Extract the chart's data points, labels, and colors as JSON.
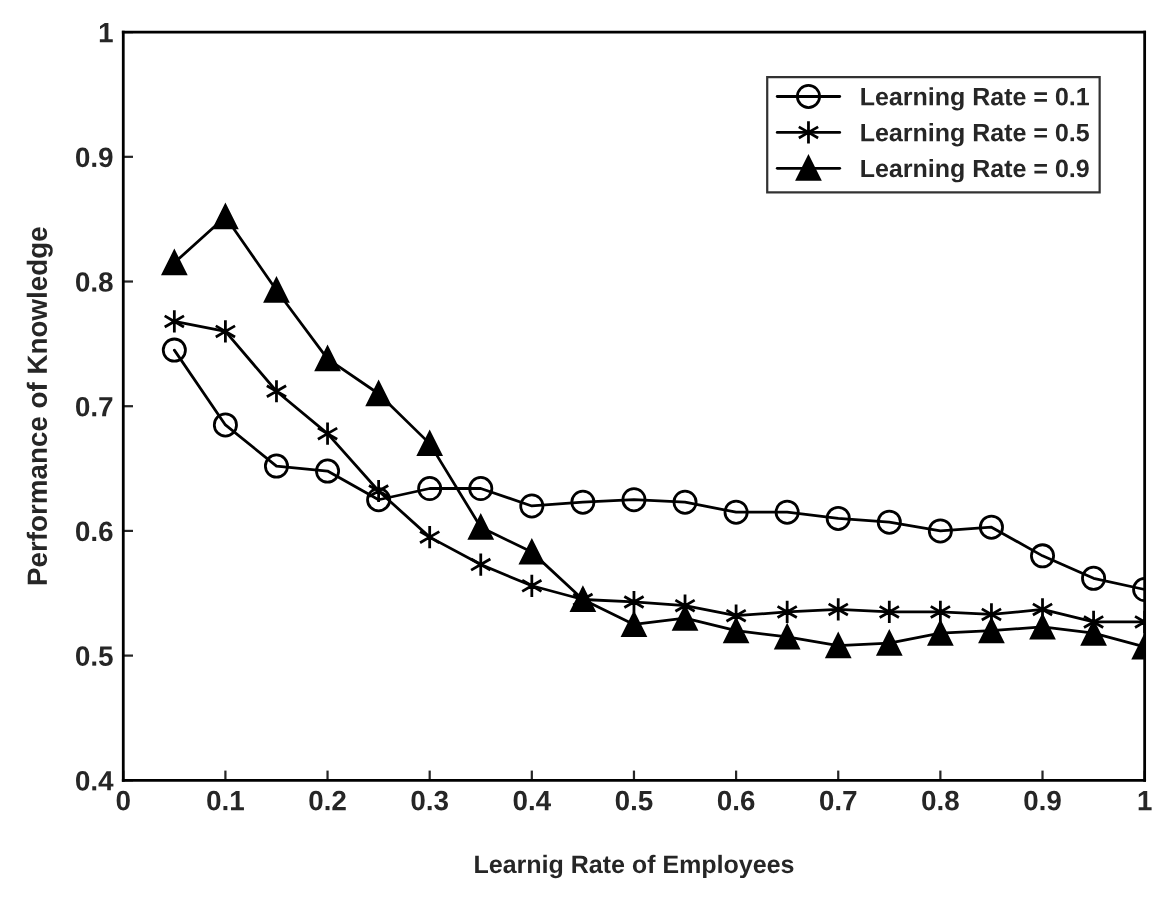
{
  "chart_data": {
    "type": "line",
    "xlabel": "Learnig Rate of Employees",
    "ylabel": "Performance of Knowledge",
    "x": [
      0.05,
      0.1,
      0.15,
      0.2,
      0.25,
      0.3,
      0.35,
      0.4,
      0.45,
      0.5,
      0.55,
      0.6,
      0.65,
      0.7,
      0.75,
      0.8,
      0.85,
      0.9,
      0.95,
      1
    ],
    "series": [
      {
        "name": "Learning Rate = 0.1",
        "color": "#000000",
        "marker": "circle",
        "values": [
          0.745,
          0.685,
          0.652,
          0.648,
          0.625,
          0.634,
          0.634,
          0.62,
          0.623,
          0.625,
          0.623,
          0.615,
          0.615,
          0.61,
          0.607,
          0.6,
          0.603,
          0.58,
          0.562,
          0.553
        ]
      },
      {
        "name": "Learning Rate = 0.5",
        "color": "#000000",
        "marker": "cross",
        "values": [
          0.768,
          0.76,
          0.712,
          0.678,
          0.632,
          0.595,
          0.573,
          0.556,
          0.545,
          0.543,
          0.54,
          0.532,
          0.535,
          0.537,
          0.535,
          0.535,
          0.533,
          0.537,
          0.527,
          0.527
        ]
      },
      {
        "name": "Learning Rate = 0.9",
        "color": "#000000",
        "marker": "triangle",
        "values": [
          0.815,
          0.852,
          0.793,
          0.738,
          0.71,
          0.67,
          0.603,
          0.583,
          0.545,
          0.525,
          0.53,
          0.52,
          0.515,
          0.508,
          0.51,
          0.518,
          0.52,
          0.523,
          0.518,
          0.507
        ]
      }
    ],
    "xlim": [
      0,
      1
    ],
    "xticks": [
      0,
      0.1,
      0.2,
      0.3,
      0.4,
      0.5,
      0.6,
      0.7,
      0.8,
      0.9,
      1
    ],
    "ylim": [
      0.4,
      1
    ],
    "yticks": [
      0.4,
      0.5,
      0.6,
      0.7,
      0.8,
      0.9,
      1
    ],
    "grid": false,
    "legend": "top right",
    "line_style": "solid"
  }
}
